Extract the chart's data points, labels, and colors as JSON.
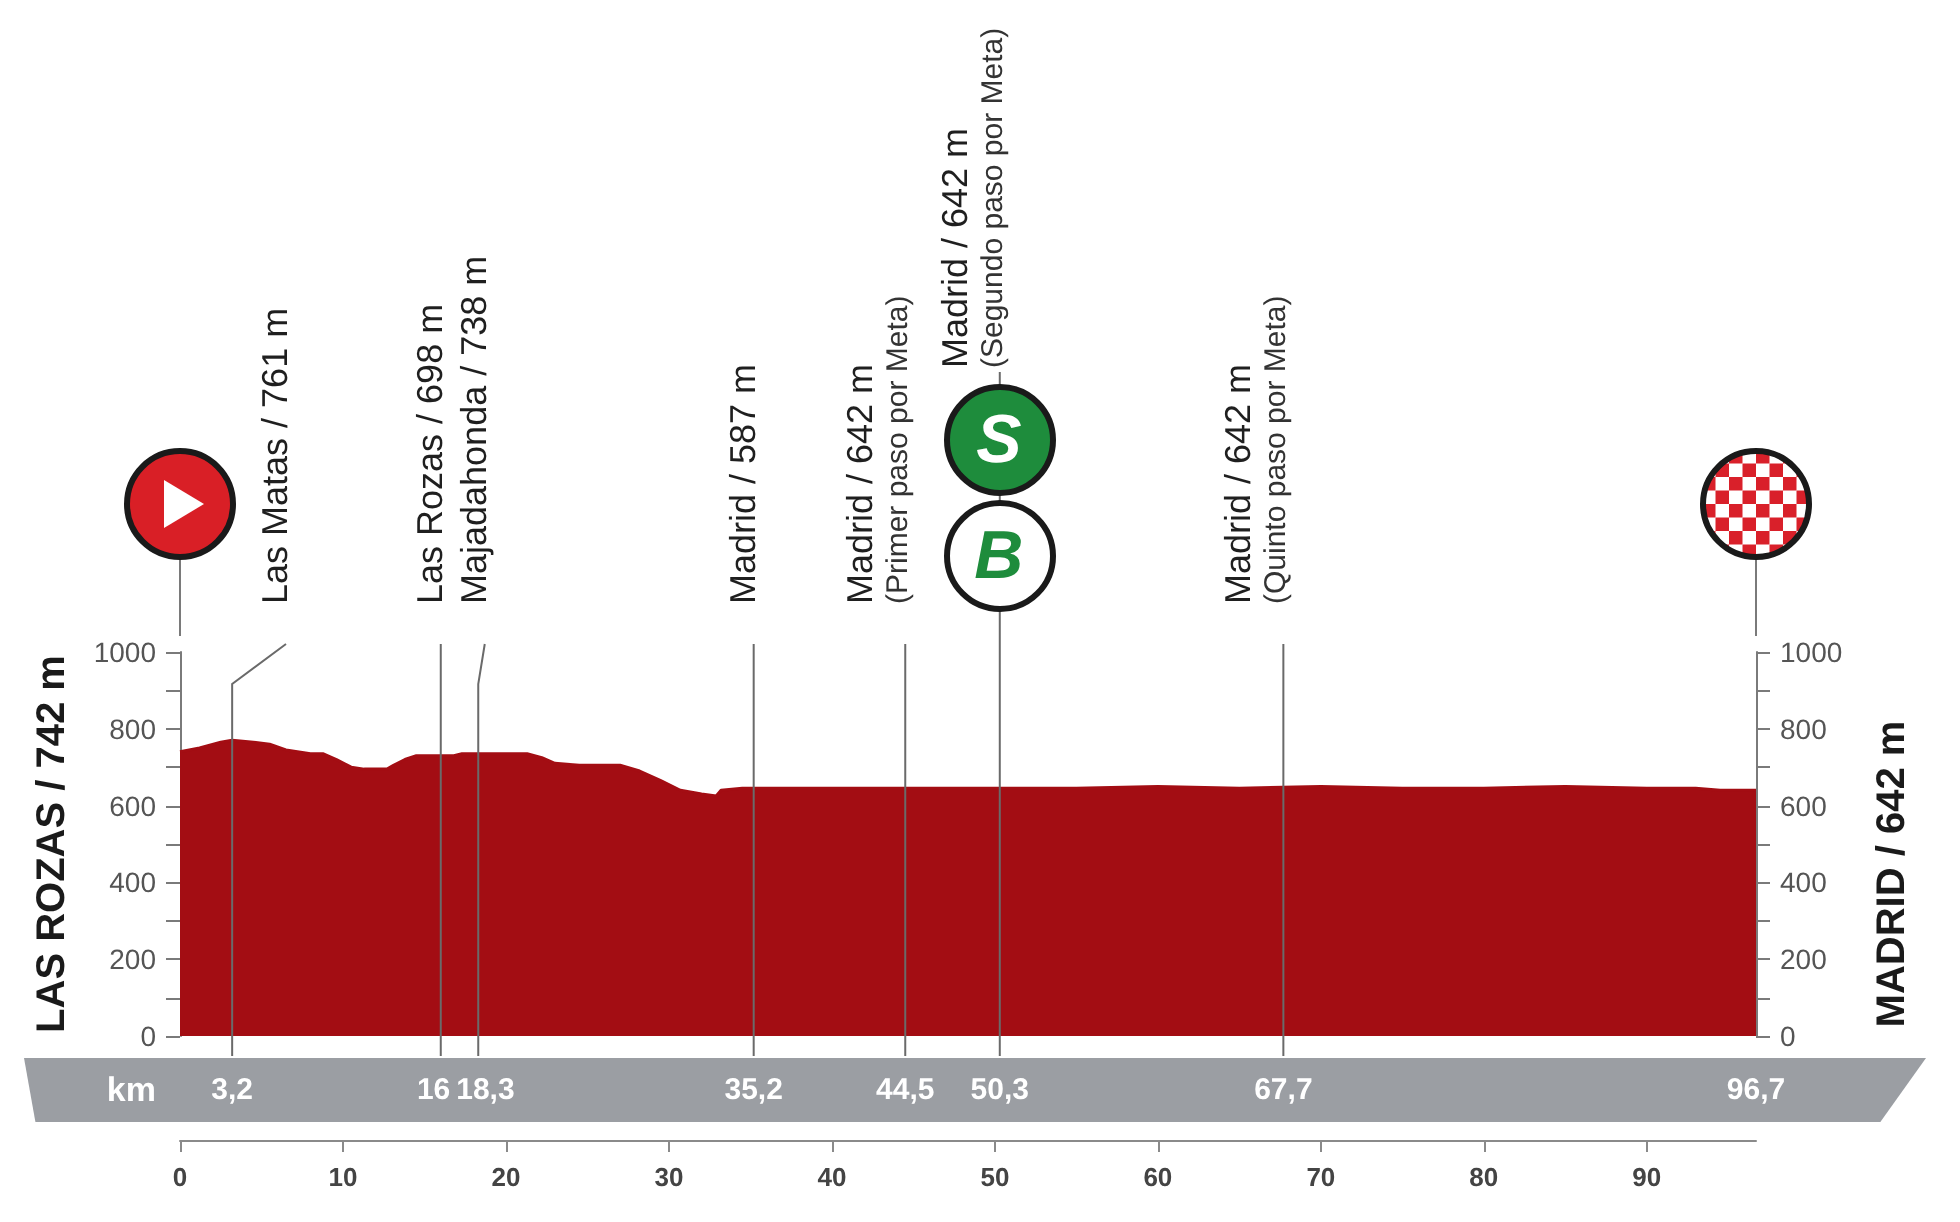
{
  "chart_data": {
    "type": "area",
    "ylabel": "LAS ROZAS / 742 m",
    "y2label": "MADRID / 642 m",
    "x2label": "km",
    "x": [
      0,
      1.2,
      2.5,
      3.2,
      4.5,
      5.5,
      6.5,
      8,
      8.8,
      9.6,
      10.5,
      11.3,
      12.7,
      13.1,
      13.8,
      14.5,
      16,
      16.8,
      17.3,
      19,
      21.3,
      22.2,
      23,
      24.5,
      27,
      28.2,
      29.5,
      30.7,
      32,
      32.9,
      33.2,
      34.5,
      36.4,
      40,
      44.5,
      48,
      50.3,
      55,
      60,
      65,
      70,
      75,
      80,
      85,
      90,
      93,
      94.5,
      96.7
    ],
    "values": [
      740,
      750,
      765,
      770,
      765,
      760,
      745,
      735,
      735,
      720,
      700,
      695,
      695,
      705,
      720,
      730,
      730,
      730,
      735,
      735,
      735,
      725,
      710,
      705,
      705,
      690,
      665,
      640,
      630,
      625,
      640,
      645,
      645,
      645,
      645,
      645,
      645,
      645,
      650,
      645,
      650,
      645,
      645,
      650,
      645,
      645,
      640,
      640
    ],
    "color": "#a30d13",
    "xlim": [
      0,
      96.7
    ],
    "xticks": [
      0,
      10,
      20,
      30,
      40,
      50,
      60,
      70,
      80,
      90
    ],
    "x2lim": [
      0,
      96.7
    ],
    "x2ticks": [
      {
        "value": 3.2,
        "label": "3,2"
      },
      16,
      {
        "value": 18.3,
        "label": "18,3"
      },
      {
        "value": 35.2,
        "label": "35,2"
      },
      {
        "value": 44.5,
        "label": "44,5"
      },
      {
        "value": 50.3,
        "label": "50,3"
      },
      {
        "value": 67.7,
        "label": "67,7"
      },
      {
        "value": 96.7,
        "label": "96,7"
      }
    ],
    "ylim": [
      0,
      1000
    ],
    "yticks": [
      0,
      {
        "value": 100,
        "label": null
      },
      200,
      {
        "value": 300,
        "label": null
      },
      400,
      {
        "value": 500,
        "label": null
      },
      600,
      {
        "value": 700,
        "label": null
      },
      800,
      {
        "value": 900,
        "label": null
      },
      1000
    ],
    "y2lim": [
      0,
      1000
    ],
    "y2ticks": [
      0,
      {
        "value": 100,
        "label": null
      },
      200,
      {
        "value": 300,
        "label": null
      },
      400,
      {
        "value": 500,
        "label": null
      },
      600,
      {
        "value": 700,
        "label": null
      },
      800,
      {
        "value": 900,
        "label": null
      },
      1000
    ],
    "ref_lines": [
      {
        "axis": "x",
        "value": 3.2,
        "label": "Las Matas / 761 m"
      },
      {
        "axis": "x",
        "value": 16,
        "label": "Las Rozas / 698 m"
      },
      {
        "axis": "x",
        "value": 18.3,
        "label": "Majadahonda / 738 m"
      },
      {
        "axis": "x",
        "value": 35.2,
        "label": "Madrid / 587 m"
      },
      {
        "axis": "x",
        "value": 44.5,
        "label": "Madrid / 642 m\n(Primer paso por Meta)"
      },
      {
        "axis": "x",
        "value": 50.3,
        "label": "Madrid / 642 m\n(Segundo paso por Meta)"
      },
      {
        "axis": "x",
        "value": 67.7,
        "label": "Madrid / 642 m\n(Quinto paso por Meta)"
      }
    ],
    "annotations": [
      "S",
      "B"
    ]
  }
}
